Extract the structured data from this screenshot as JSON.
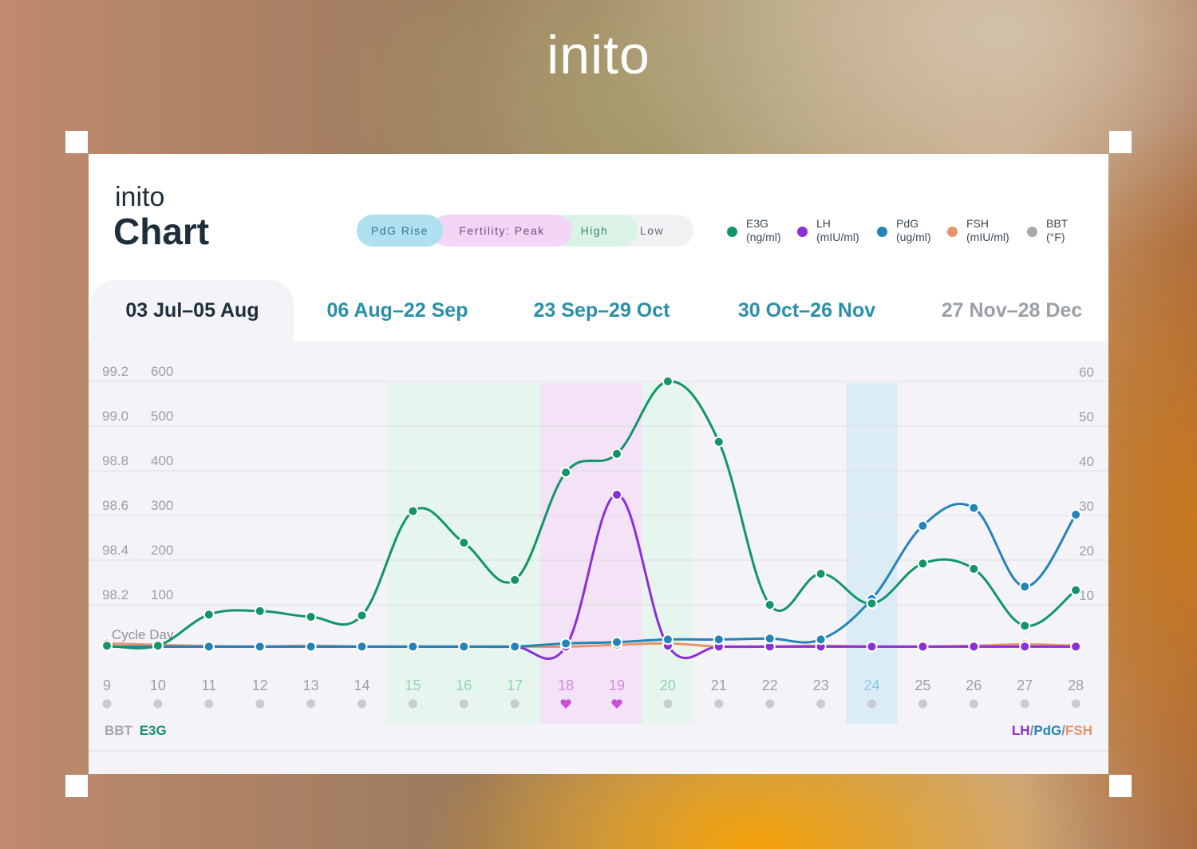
{
  "brand": "inito",
  "card": {
    "logo": "inito",
    "title": "Chart"
  },
  "phases": [
    {
      "label": "PdG Rise",
      "bg": "#aee0f0",
      "fg": "#2f7a90"
    },
    {
      "label": "Fertility: Peak",
      "bg": "#f3d5f5",
      "fg": "#7a4a80"
    },
    {
      "label": "High",
      "bg": "#daf3e6",
      "fg": "#3e8a62"
    },
    {
      "label": "Low",
      "bg": "#f2f2f5",
      "fg": "#666a72"
    }
  ],
  "legend": [
    {
      "name": "E3G",
      "unit": "(ng/ml)",
      "color": "#12956a"
    },
    {
      "name": "LH",
      "unit": "(mIU/ml)",
      "color": "#8b2fd8"
    },
    {
      "name": "PdG",
      "unit": "(ug/ml)",
      "color": "#2484b8"
    },
    {
      "name": "FSH",
      "unit": "(mIU/ml)",
      "color": "#e8946a"
    },
    {
      "name": "BBT",
      "unit": "(°F)",
      "color": "#a8a8a8"
    }
  ],
  "tabs": [
    {
      "label": "03 Jul–05 Aug",
      "active": true,
      "color": "#1d2f3a"
    },
    {
      "label": "06 Aug–22 Sep",
      "active": false,
      "color": "#2a8fa8"
    },
    {
      "label": "23 Sep–29 Oct",
      "active": false,
      "color": "#2a8fa8"
    },
    {
      "label": "30 Oct–26 Nov",
      "active": false,
      "color": "#2a8fa8"
    },
    {
      "label": "27 Nov–28 Dec",
      "active": false,
      "color": "#9aa0a6"
    }
  ],
  "axis_labels": {
    "cycle_day": "Cycle Day",
    "bottom_left_bbt": "BBT",
    "bottom_left_e3g": "E3G",
    "bottom_right_lh": "LH",
    "bottom_right_pdg": "PdG",
    "bottom_right_fsh": "FSH",
    "slash": "/"
  },
  "chart_data": {
    "type": "line",
    "x_label": "Cycle Day",
    "x": [
      9,
      10,
      11,
      12,
      13,
      14,
      15,
      16,
      17,
      18,
      19,
      20,
      21,
      22,
      23,
      24,
      25,
      26,
      27,
      28
    ],
    "y_left_bbt_ticks": [
      "99.2",
      "99.0",
      "98.8",
      "98.6",
      "98.4",
      "98.2"
    ],
    "y_left_e3g_ticks": [
      "600",
      "500",
      "400",
      "300",
      "200",
      "100"
    ],
    "y_right_ticks": [
      "60",
      "50",
      "40",
      "30",
      "20",
      "10"
    ],
    "e3g_ylim": [
      0,
      600
    ],
    "right_ylim": [
      0,
      60
    ],
    "day_phase": [
      "low",
      "low",
      "low",
      "low",
      "low",
      "low",
      "high",
      "high",
      "high",
      "peak",
      "peak",
      "high",
      "low",
      "low",
      "low",
      "pdg",
      "low",
      "low",
      "low",
      "low"
    ],
    "intercourse_days": [
      18,
      19
    ],
    "phase_colors": {
      "high": "#e6f5ee",
      "peak": "#f4e2f6",
      "pdg": "#dcecf6",
      "low": "none"
    },
    "day_label_colors": {
      "low": "#9aa0a6",
      "high": "#8fd3b4",
      "peak": "#d08ae0",
      "pdg": "#8cc6e6"
    },
    "series": [
      {
        "name": "E3G",
        "axis": "left",
        "color": "#12956a",
        "values": [
          5,
          5,
          75,
          83,
          70,
          73,
          308,
          237,
          153,
          395,
          437,
          600,
          464,
          97,
          167,
          100,
          190,
          178,
          50,
          130
        ]
      },
      {
        "name": "LH",
        "axis": "right",
        "color": "#8b2fd8",
        "values": [
          0.3,
          0.3,
          0.3,
          0.3,
          0.3,
          0.3,
          0.3,
          0.3,
          0.3,
          0.3,
          34.5,
          0.5,
          0.3,
          0.3,
          0.3,
          0.3,
          0.3,
          0.3,
          0.3,
          0.3
        ]
      },
      {
        "name": "PdG",
        "axis": "right",
        "color": "#2484b8",
        "values": [
          0.3,
          0.3,
          0.3,
          0.3,
          0.3,
          0.3,
          0.3,
          0.3,
          0.3,
          1,
          1.3,
          1.9,
          1.9,
          2.1,
          1.9,
          11,
          27.5,
          31.5,
          13.8,
          30
        ]
      },
      {
        "name": "FSH",
        "axis": "right",
        "color": "#e8946a",
        "values": [
          1,
          0.7,
          0.4,
          0.3,
          0.5,
          0.3,
          0.3,
          0.3,
          0.3,
          0.3,
          0.7,
          1,
          0.3,
          0.3,
          0.5,
          0.3,
          0.3,
          0.5,
          0.8,
          0.5
        ]
      }
    ]
  }
}
